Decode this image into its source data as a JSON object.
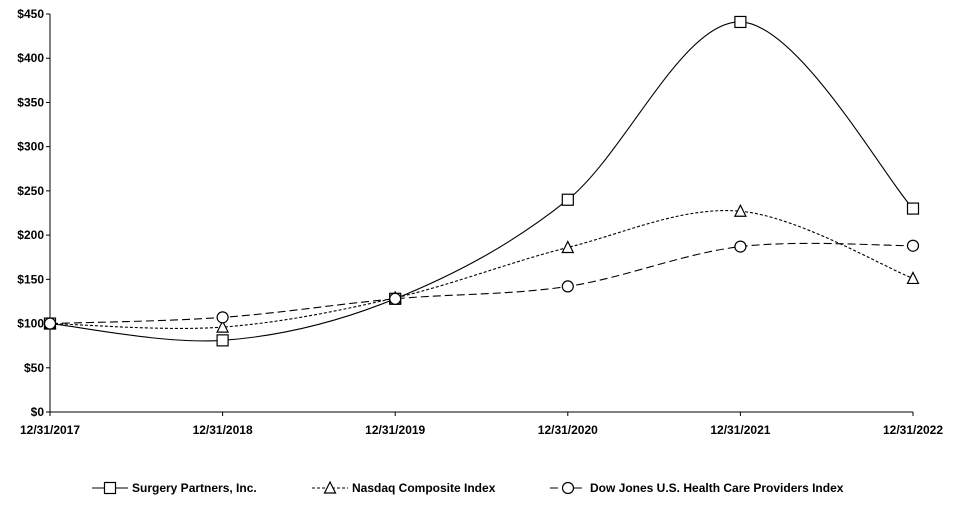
{
  "chart_data": {
    "type": "line",
    "title": "",
    "xlabel": "",
    "ylabel": "",
    "categories": [
      "12/31/2017",
      "12/31/2018",
      "12/31/2019",
      "12/31/2020",
      "12/31/2021",
      "12/31/2022"
    ],
    "ylim": [
      0,
      450
    ],
    "yticks": [
      0,
      50,
      100,
      150,
      200,
      250,
      300,
      350,
      400,
      450
    ],
    "ytick_labels": [
      "$0",
      "$50",
      "$100",
      "$150",
      "$200",
      "$250",
      "$300",
      "$350",
      "$400",
      "$450"
    ],
    "grid": false,
    "smooth": true,
    "legend_position": "bottom",
    "series": [
      {
        "name": "Surgery Partners, Inc.",
        "values": [
          100,
          81,
          128,
          240,
          441,
          230
        ],
        "marker": "square",
        "line_style": "solid",
        "color": "#000000"
      },
      {
        "name": "Nasdaq Composite Index",
        "values": [
          100,
          96,
          129,
          186,
          227,
          151
        ],
        "marker": "triangle",
        "line_style": "dotted",
        "color": "#000000"
      },
      {
        "name": "Dow Jones U.S. Health Care Providers Index",
        "values": [
          100,
          107,
          128,
          142,
          187,
          188
        ],
        "marker": "circle",
        "line_style": "dashed",
        "color": "#000000"
      }
    ]
  }
}
